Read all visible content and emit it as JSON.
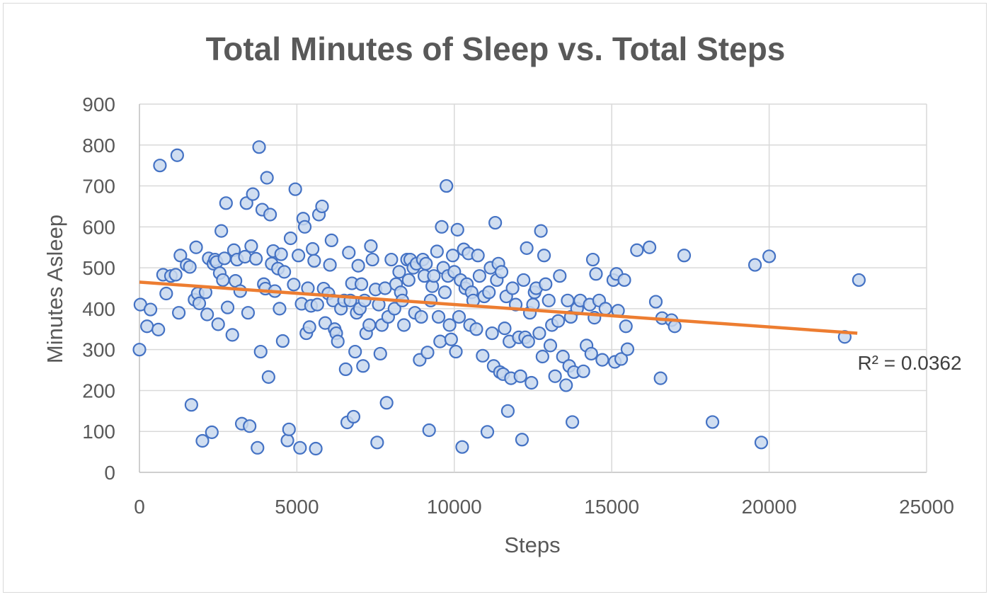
{
  "chart_data": {
    "type": "scatter",
    "title": "Total Minutes of Sleep vs. Total Steps",
    "xlabel": "Steps",
    "ylabel": "Minutes Asleep",
    "xlim": [
      0,
      25000
    ],
    "ylim": [
      0,
      900
    ],
    "xticks": [
      0,
      5000,
      10000,
      15000,
      20000,
      25000
    ],
    "yticks": [
      0,
      100,
      200,
      300,
      400,
      500,
      600,
      700,
      800,
      900
    ],
    "grid": true,
    "legend": "none",
    "colors": {
      "marker_fill": "#c8d8ef",
      "marker_edge": "#4472c4",
      "trendline": "#ed7d31"
    },
    "trendline": {
      "type": "linear",
      "x": [
        0,
        22800
      ],
      "y": [
        465,
        340
      ],
      "label": "R² = 0.0362"
    },
    "points": [
      [
        0,
        300
      ],
      [
        30,
        410
      ],
      [
        240,
        357
      ],
      [
        350,
        398
      ],
      [
        600,
        349
      ],
      [
        650,
        750
      ],
      [
        750,
        483
      ],
      [
        850,
        437
      ],
      [
        1000,
        480
      ],
      [
        1150,
        483
      ],
      [
        1200,
        775
      ],
      [
        1250,
        390
      ],
      [
        1300,
        530
      ],
      [
        1500,
        507
      ],
      [
        1600,
        502
      ],
      [
        1650,
        165
      ],
      [
        1750,
        422
      ],
      [
        1800,
        550
      ],
      [
        1850,
        437
      ],
      [
        1900,
        413
      ],
      [
        2000,
        77
      ],
      [
        2100,
        440
      ],
      [
        2150,
        386
      ],
      [
        2200,
        523
      ],
      [
        2300,
        98
      ],
      [
        2350,
        510
      ],
      [
        2400,
        520
      ],
      [
        2450,
        514
      ],
      [
        2500,
        362
      ],
      [
        2550,
        487
      ],
      [
        2600,
        590
      ],
      [
        2650,
        470
      ],
      [
        2700,
        523
      ],
      [
        2750,
        658
      ],
      [
        2800,
        403
      ],
      [
        2950,
        336
      ],
      [
        3000,
        543
      ],
      [
        3050,
        468
      ],
      [
        3100,
        520
      ],
      [
        3200,
        443
      ],
      [
        3250,
        119
      ],
      [
        3350,
        527
      ],
      [
        3400,
        658
      ],
      [
        3450,
        390
      ],
      [
        3500,
        113
      ],
      [
        3550,
        553
      ],
      [
        3600,
        680
      ],
      [
        3700,
        522
      ],
      [
        3750,
        60
      ],
      [
        3800,
        795
      ],
      [
        3850,
        295
      ],
      [
        3900,
        642
      ],
      [
        3950,
        460
      ],
      [
        4000,
        449
      ],
      [
        4050,
        720
      ],
      [
        4100,
        233
      ],
      [
        4150,
        630
      ],
      [
        4200,
        510
      ],
      [
        4250,
        541
      ],
      [
        4300,
        443
      ],
      [
        4400,
        498
      ],
      [
        4450,
        400
      ],
      [
        4500,
        533
      ],
      [
        4550,
        321
      ],
      [
        4600,
        490
      ],
      [
        4700,
        78
      ],
      [
        4750,
        105
      ],
      [
        4800,
        572
      ],
      [
        4900,
        459
      ],
      [
        4950,
        692
      ],
      [
        5050,
        530
      ],
      [
        5100,
        60
      ],
      [
        5150,
        412
      ],
      [
        5200,
        620
      ],
      [
        5250,
        600
      ],
      [
        5300,
        340
      ],
      [
        5350,
        450
      ],
      [
        5400,
        355
      ],
      [
        5450,
        407
      ],
      [
        5500,
        546
      ],
      [
        5550,
        517
      ],
      [
        5600,
        58
      ],
      [
        5650,
        410
      ],
      [
        5700,
        630
      ],
      [
        5800,
        650
      ],
      [
        5850,
        449
      ],
      [
        5900,
        365
      ],
      [
        6000,
        437
      ],
      [
        6050,
        507
      ],
      [
        6100,
        567
      ],
      [
        6150,
        420
      ],
      [
        6200,
        350
      ],
      [
        6250,
        340
      ],
      [
        6300,
        320
      ],
      [
        6400,
        400
      ],
      [
        6500,
        420
      ],
      [
        6550,
        252
      ],
      [
        6600,
        122
      ],
      [
        6650,
        537
      ],
      [
        6700,
        420
      ],
      [
        6750,
        462
      ],
      [
        6800,
        136
      ],
      [
        6850,
        295
      ],
      [
        6900,
        390
      ],
      [
        6950,
        505
      ],
      [
        7000,
        400
      ],
      [
        7050,
        460
      ],
      [
        7100,
        260
      ],
      [
        7150,
        420
      ],
      [
        7200,
        340
      ],
      [
        7300,
        360
      ],
      [
        7350,
        553
      ],
      [
        7400,
        520
      ],
      [
        7500,
        447
      ],
      [
        7550,
        73
      ],
      [
        7600,
        410
      ],
      [
        7650,
        290
      ],
      [
        7700,
        360
      ],
      [
        7800,
        450
      ],
      [
        7850,
        170
      ],
      [
        7900,
        380
      ],
      [
        8000,
        520
      ],
      [
        8100,
        400
      ],
      [
        8150,
        460
      ],
      [
        8250,
        490
      ],
      [
        8300,
        440
      ],
      [
        8350,
        420
      ],
      [
        8400,
        360
      ],
      [
        8500,
        520
      ],
      [
        8550,
        470
      ],
      [
        8600,
        520
      ],
      [
        8700,
        500
      ],
      [
        8750,
        390
      ],
      [
        8800,
        510
      ],
      [
        8900,
        275
      ],
      [
        8950,
        380
      ],
      [
        9000,
        520
      ],
      [
        9050,
        480
      ],
      [
        9100,
        510
      ],
      [
        9150,
        293
      ],
      [
        9200,
        103
      ],
      [
        9250,
        420
      ],
      [
        9300,
        455
      ],
      [
        9350,
        480
      ],
      [
        9450,
        540
      ],
      [
        9500,
        380
      ],
      [
        9550,
        320
      ],
      [
        9600,
        600
      ],
      [
        9650,
        500
      ],
      [
        9700,
        440
      ],
      [
        9750,
        700
      ],
      [
        9800,
        480
      ],
      [
        9850,
        360
      ],
      [
        9900,
        325
      ],
      [
        9950,
        530
      ],
      [
        10000,
        490
      ],
      [
        10050,
        295
      ],
      [
        10100,
        593
      ],
      [
        10150,
        380
      ],
      [
        10200,
        470
      ],
      [
        10250,
        62
      ],
      [
        10300,
        545
      ],
      [
        10350,
        450
      ],
      [
        10400,
        460
      ],
      [
        10450,
        535
      ],
      [
        10500,
        360
      ],
      [
        10550,
        440
      ],
      [
        10600,
        420
      ],
      [
        10700,
        350
      ],
      [
        10750,
        530
      ],
      [
        10800,
        480
      ],
      [
        10900,
        285
      ],
      [
        10950,
        430
      ],
      [
        11050,
        99
      ],
      [
        11100,
        440
      ],
      [
        11150,
        500
      ],
      [
        11200,
        340
      ],
      [
        11250,
        260
      ],
      [
        11300,
        610
      ],
      [
        11350,
        470
      ],
      [
        11400,
        510
      ],
      [
        11450,
        245
      ],
      [
        11500,
        490
      ],
      [
        11550,
        240
      ],
      [
        11600,
        352
      ],
      [
        11650,
        430
      ],
      [
        11700,
        150
      ],
      [
        11750,
        320
      ],
      [
        11800,
        230
      ],
      [
        11850,
        450
      ],
      [
        11950,
        410
      ],
      [
        12050,
        330
      ],
      [
        12100,
        235
      ],
      [
        12150,
        80
      ],
      [
        12200,
        470
      ],
      [
        12250,
        330
      ],
      [
        12300,
        548
      ],
      [
        12350,
        320
      ],
      [
        12400,
        390
      ],
      [
        12450,
        219
      ],
      [
        12500,
        410
      ],
      [
        12550,
        440
      ],
      [
        12600,
        450
      ],
      [
        12700,
        340
      ],
      [
        12750,
        590
      ],
      [
        12800,
        283
      ],
      [
        12850,
        530
      ],
      [
        12900,
        460
      ],
      [
        13000,
        420
      ],
      [
        13050,
        310
      ],
      [
        13100,
        360
      ],
      [
        13200,
        235
      ],
      [
        13300,
        370
      ],
      [
        13350,
        480
      ],
      [
        13450,
        283
      ],
      [
        13550,
        213
      ],
      [
        13600,
        420
      ],
      [
        13650,
        260
      ],
      [
        13700,
        380
      ],
      [
        13750,
        123
      ],
      [
        13800,
        245
      ],
      [
        13900,
        400
      ],
      [
        14000,
        420
      ],
      [
        14100,
        247
      ],
      [
        14200,
        310
      ],
      [
        14300,
        410
      ],
      [
        14350,
        290
      ],
      [
        14400,
        520
      ],
      [
        14450,
        378
      ],
      [
        14500,
        485
      ],
      [
        14600,
        420
      ],
      [
        14700,
        275
      ],
      [
        14800,
        400
      ],
      [
        15050,
        470
      ],
      [
        15100,
        270
      ],
      [
        15150,
        485
      ],
      [
        15200,
        395
      ],
      [
        15300,
        277
      ],
      [
        15400,
        470
      ],
      [
        15450,
        357
      ],
      [
        15500,
        301
      ],
      [
        15800,
        543
      ],
      [
        16200,
        550
      ],
      [
        16400,
        417
      ],
      [
        16550,
        230
      ],
      [
        16600,
        377
      ],
      [
        16900,
        372
      ],
      [
        17000,
        357
      ],
      [
        17300,
        530
      ],
      [
        18200,
        123
      ],
      [
        19550,
        507
      ],
      [
        19750,
        73
      ],
      [
        20000,
        528
      ],
      [
        22400,
        331
      ],
      [
        22850,
        470
      ]
    ]
  }
}
